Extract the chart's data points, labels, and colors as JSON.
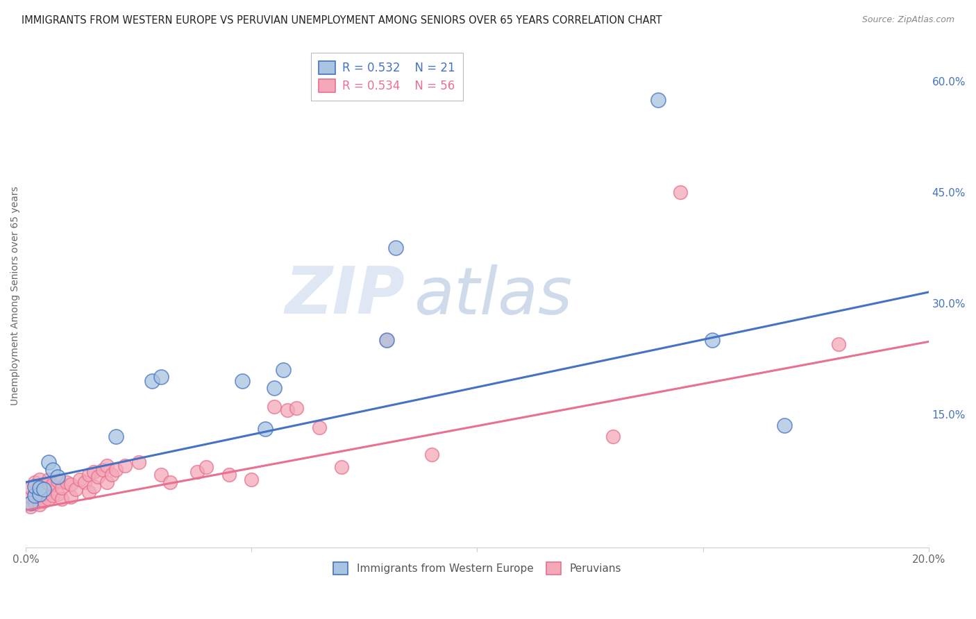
{
  "title": "IMMIGRANTS FROM WESTERN EUROPE VS PERUVIAN UNEMPLOYMENT AMONG SENIORS OVER 65 YEARS CORRELATION CHART",
  "source": "Source: ZipAtlas.com",
  "ylabel": "Unemployment Among Seniors over 65 years",
  "xlim": [
    0.0,
    0.2
  ],
  "ylim": [
    -0.03,
    0.65
  ],
  "xticks": [
    0.0,
    0.05,
    0.1,
    0.15,
    0.2
  ],
  "xtick_labels": [
    "0.0%",
    "",
    "",
    "",
    "20.0%"
  ],
  "yticks_right": [
    0.0,
    0.15,
    0.3,
    0.45,
    0.6
  ],
  "ytick_labels_right": [
    "",
    "15.0%",
    "30.0%",
    "45.0%",
    "60.0%"
  ],
  "color_blue": "#a8c4e0",
  "color_pink": "#f4a8b8",
  "color_line_blue": "#4472c4",
  "color_line_pink": "#e87090",
  "watermark_zip": "ZIP",
  "watermark_atlas": "atlas",
  "blue_points_x": [
    0.001,
    0.002,
    0.002,
    0.003,
    0.003,
    0.004,
    0.005,
    0.006,
    0.007,
    0.02,
    0.028,
    0.03,
    0.048,
    0.053,
    0.055,
    0.057,
    0.08,
    0.082,
    0.14,
    0.152,
    0.168
  ],
  "blue_points_y": [
    0.03,
    0.04,
    0.052,
    0.042,
    0.05,
    0.048,
    0.085,
    0.075,
    0.065,
    0.12,
    0.195,
    0.2,
    0.195,
    0.13,
    0.185,
    0.21,
    0.25,
    0.375,
    0.575,
    0.25,
    0.135
  ],
  "pink_points_x": [
    0.001,
    0.001,
    0.001,
    0.002,
    0.002,
    0.002,
    0.003,
    0.003,
    0.003,
    0.003,
    0.004,
    0.004,
    0.004,
    0.005,
    0.005,
    0.005,
    0.006,
    0.006,
    0.007,
    0.007,
    0.008,
    0.008,
    0.009,
    0.01,
    0.01,
    0.011,
    0.012,
    0.013,
    0.014,
    0.014,
    0.015,
    0.015,
    0.016,
    0.017,
    0.018,
    0.018,
    0.019,
    0.02,
    0.022,
    0.025,
    0.03,
    0.032,
    0.038,
    0.04,
    0.045,
    0.05,
    0.055,
    0.058,
    0.06,
    0.065,
    0.07,
    0.08,
    0.09,
    0.13,
    0.145,
    0.18
  ],
  "pink_points_y": [
    0.025,
    0.038,
    0.05,
    0.03,
    0.042,
    0.058,
    0.028,
    0.038,
    0.05,
    0.062,
    0.032,
    0.042,
    0.055,
    0.035,
    0.048,
    0.062,
    0.04,
    0.055,
    0.042,
    0.06,
    0.035,
    0.05,
    0.058,
    0.038,
    0.055,
    0.048,
    0.062,
    0.058,
    0.045,
    0.068,
    0.052,
    0.072,
    0.065,
    0.075,
    0.058,
    0.08,
    0.068,
    0.075,
    0.08,
    0.085,
    0.068,
    0.058,
    0.072,
    0.078,
    0.068,
    0.062,
    0.16,
    0.155,
    0.158,
    0.132,
    0.078,
    0.25,
    0.095,
    0.12,
    0.45,
    0.245
  ],
  "blue_line_x": [
    0.0,
    0.2
  ],
  "blue_line_y": [
    0.058,
    0.315
  ],
  "pink_line_x": [
    0.0,
    0.2
  ],
  "pink_line_y": [
    0.02,
    0.248
  ]
}
